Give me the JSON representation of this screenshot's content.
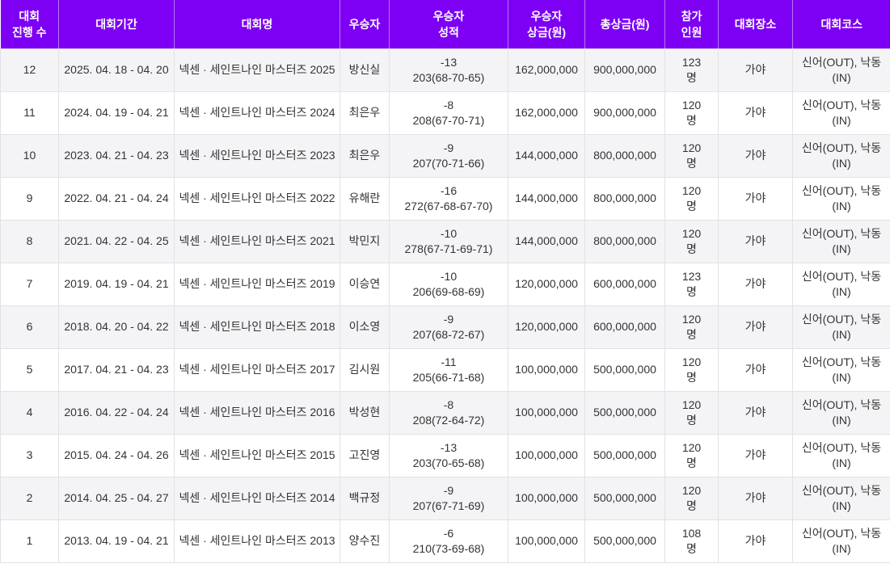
{
  "colors": {
    "header_bg": "#7d00f5",
    "header_text": "#ffffff",
    "row_alt_bg": "#f4f4f6",
    "border": "#e2e2e6",
    "text": "#333333"
  },
  "table": {
    "columns": [
      {
        "key": "no",
        "label": "대회\n진행 수"
      },
      {
        "key": "period",
        "label": "대회기간"
      },
      {
        "key": "name",
        "label": "대회명"
      },
      {
        "key": "winner",
        "label": "우승자"
      },
      {
        "key": "score",
        "label": "우승자\n성적"
      },
      {
        "key": "winner_prize",
        "label": "우승자\n상금(원)"
      },
      {
        "key": "total_prize",
        "label": "총상금(원)"
      },
      {
        "key": "participants",
        "label": "참가\n인원"
      },
      {
        "key": "venue",
        "label": "대회장소"
      },
      {
        "key": "course",
        "label": "대회코스"
      }
    ],
    "rows": [
      {
        "no": "12",
        "period": "2025. 04. 18 - 04. 20",
        "name": "넥센 · 세인트나인 마스터즈 2025",
        "winner": "방신실",
        "score": "-13\n203(68-70-65)",
        "winner_prize": "162,000,000",
        "total_prize": "900,000,000",
        "participants": "123\n명",
        "venue": "가야",
        "course": "신어(OUT), 낙동(IN)"
      },
      {
        "no": "11",
        "period": "2024. 04. 19 - 04. 21",
        "name": "넥센 · 세인트나인 마스터즈 2024",
        "winner": "최은우",
        "score": "-8\n208(67-70-71)",
        "winner_prize": "162,000,000",
        "total_prize": "900,000,000",
        "participants": "120\n명",
        "venue": "가야",
        "course": "신어(OUT), 낙동(IN)"
      },
      {
        "no": "10",
        "period": "2023. 04. 21 - 04. 23",
        "name": "넥센 · 세인트나인 마스터즈 2023",
        "winner": "최은우",
        "score": "-9\n207(70-71-66)",
        "winner_prize": "144,000,000",
        "total_prize": "800,000,000",
        "participants": "120\n명",
        "venue": "가야",
        "course": "신어(OUT), 낙동(IN)"
      },
      {
        "no": "9",
        "period": "2022. 04. 21 - 04. 24",
        "name": "넥센 · 세인트나인 마스터즈 2022",
        "winner": "유해란",
        "score": "-16\n272(67-68-67-70)",
        "winner_prize": "144,000,000",
        "total_prize": "800,000,000",
        "participants": "120\n명",
        "venue": "가야",
        "course": "신어(OUT), 낙동(IN)"
      },
      {
        "no": "8",
        "period": "2021. 04. 22 - 04. 25",
        "name": "넥센 · 세인트나인 마스터즈 2021",
        "winner": "박민지",
        "score": "-10\n278(67-71-69-71)",
        "winner_prize": "144,000,000",
        "total_prize": "800,000,000",
        "participants": "120\n명",
        "venue": "가야",
        "course": "신어(OUT), 낙동(IN)"
      },
      {
        "no": "7",
        "period": "2019. 04. 19 - 04. 21",
        "name": "넥센 · 세인트나인 마스터즈 2019",
        "winner": "이승연",
        "score": "-10\n206(69-68-69)",
        "winner_prize": "120,000,000",
        "total_prize": "600,000,000",
        "participants": "123\n명",
        "venue": "가야",
        "course": "신어(OUT), 낙동(IN)"
      },
      {
        "no": "6",
        "period": "2018. 04. 20 - 04. 22",
        "name": "넥센 · 세인트나인 마스터즈 2018",
        "winner": "이소영",
        "score": "-9\n207(68-72-67)",
        "winner_prize": "120,000,000",
        "total_prize": "600,000,000",
        "participants": "120\n명",
        "venue": "가야",
        "course": "신어(OUT), 낙동(IN)"
      },
      {
        "no": "5",
        "period": "2017. 04. 21 - 04. 23",
        "name": "넥센 · 세인트나인 마스터즈 2017",
        "winner": "김시원",
        "score": "-11\n205(66-71-68)",
        "winner_prize": "100,000,000",
        "total_prize": "500,000,000",
        "participants": "120\n명",
        "venue": "가야",
        "course": "신어(OUT), 낙동(IN)"
      },
      {
        "no": "4",
        "period": "2016. 04. 22 - 04. 24",
        "name": "넥센 · 세인트나인 마스터즈 2016",
        "winner": "박성현",
        "score": "-8\n208(72-64-72)",
        "winner_prize": "100,000,000",
        "total_prize": "500,000,000",
        "participants": "120\n명",
        "venue": "가야",
        "course": "신어(OUT), 낙동(IN)"
      },
      {
        "no": "3",
        "period": "2015. 04. 24 - 04. 26",
        "name": "넥센 · 세인트나인 마스터즈 2015",
        "winner": "고진영",
        "score": "-13\n203(70-65-68)",
        "winner_prize": "100,000,000",
        "total_prize": "500,000,000",
        "participants": "120\n명",
        "venue": "가야",
        "course": "신어(OUT), 낙동(IN)"
      },
      {
        "no": "2",
        "period": "2014. 04. 25 - 04. 27",
        "name": "넥센 · 세인트나인 마스터즈 2014",
        "winner": "백규정",
        "score": "-9\n207(67-71-69)",
        "winner_prize": "100,000,000",
        "total_prize": "500,000,000",
        "participants": "120\n명",
        "venue": "가야",
        "course": "신어(OUT), 낙동(IN)"
      },
      {
        "no": "1",
        "period": "2013. 04. 19 - 04. 21",
        "name": "넥센 · 세인트나인 마스터즈 2013",
        "winner": "양수진",
        "score": "-6\n210(73-69-68)",
        "winner_prize": "100,000,000",
        "total_prize": "500,000,000",
        "participants": "108\n명",
        "venue": "가야",
        "course": "신어(OUT), 낙동(IN)"
      }
    ]
  }
}
